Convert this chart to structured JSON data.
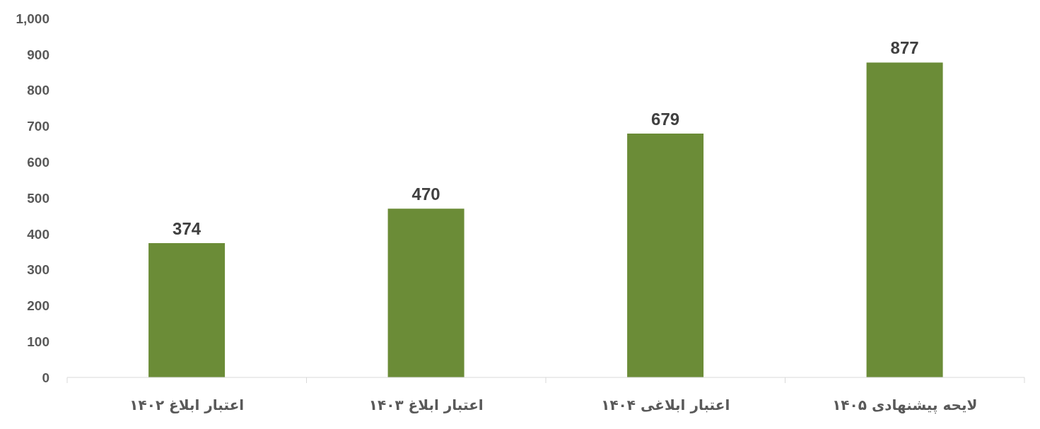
{
  "chart_data": {
    "type": "bar",
    "categories": [
      "اعتبار ابلاغ ۱۴۰۲",
      "اعتبار ابلاغ ۱۴۰۳",
      "اعتبار ابلاغی ۱۴۰۴",
      "لایحه پیشنهادی ۱۴۰۵"
    ],
    "values": [
      374,
      470,
      679,
      877
    ],
    "color": "#6b8c37",
    "ylim": [
      0,
      1000
    ],
    "yticks": [
      0,
      100,
      200,
      300,
      400,
      500,
      600,
      700,
      800,
      900,
      {
        "value": 1000,
        "label": "1,000"
      }
    ],
    "data_labels": true
  }
}
